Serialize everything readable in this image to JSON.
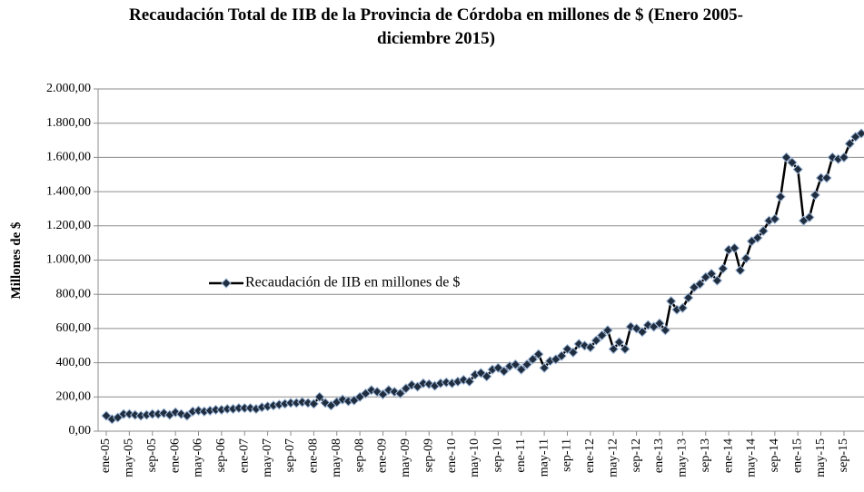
{
  "chart_data": {
    "type": "line",
    "title": [
      "Recaudación Total de IIB de la Provincia de Córdoba en millones de $  (Enero 2005-",
      "diciembre 2015)"
    ],
    "y_label": "Millones de $",
    "categories": [
      "ene-05",
      null,
      null,
      null,
      "may-05",
      null,
      null,
      null,
      "sep-05",
      null,
      null,
      null,
      "ene-06",
      null,
      null,
      null,
      "may-06",
      null,
      null,
      null,
      "sep-06",
      null,
      null,
      null,
      "ene-07",
      null,
      null,
      null,
      "may-07",
      null,
      null,
      null,
      "sep-07",
      null,
      null,
      null,
      "ene-08",
      null,
      null,
      null,
      "may-08",
      null,
      null,
      null,
      "sep-08",
      null,
      null,
      null,
      "ene-09",
      null,
      null,
      null,
      "may-09",
      null,
      null,
      null,
      "sep-09",
      null,
      null,
      null,
      "ene-10",
      null,
      null,
      null,
      "may-10",
      null,
      null,
      null,
      "sep-10",
      null,
      null,
      null,
      "ene-11",
      null,
      null,
      null,
      "may-11",
      null,
      null,
      null,
      "sep-11",
      null,
      null,
      null,
      "ene-12",
      null,
      null,
      null,
      "may-12",
      null,
      null,
      null,
      "sep-12",
      null,
      null,
      null,
      "ene-13",
      null,
      null,
      null,
      "may-13",
      null,
      null,
      null,
      "sep-13",
      null,
      null,
      null,
      "ene-14",
      null,
      null,
      null,
      "may-14",
      null,
      null,
      null,
      "sep-14",
      null,
      null,
      null,
      "ene-15",
      null,
      null,
      null,
      "may-15",
      null,
      null,
      null,
      "sep-15",
      null,
      null,
      null
    ],
    "series": [
      {
        "name": "Recaudación de IIB en millones de $",
        "color": "#000000",
        "marker_color": "#1f2d3f",
        "values": [
          90,
          70,
          80,
          100,
          100,
          95,
          90,
          95,
          100,
          100,
          105,
          95,
          110,
          100,
          90,
          115,
          120,
          115,
          120,
          125,
          125,
          130,
          130,
          135,
          135,
          135,
          130,
          140,
          145,
          150,
          155,
          160,
          165,
          165,
          170,
          165,
          160,
          200,
          165,
          150,
          170,
          185,
          175,
          180,
          200,
          220,
          240,
          230,
          215,
          240,
          230,
          220,
          250,
          270,
          260,
          280,
          275,
          265,
          280,
          285,
          280,
          290,
          300,
          290,
          330,
          340,
          320,
          360,
          370,
          350,
          380,
          390,
          360,
          390,
          420,
          450,
          370,
          410,
          420,
          440,
          480,
          460,
          510,
          500,
          490,
          530,
          560,
          590,
          480,
          520,
          480,
          610,
          600,
          580,
          620,
          610,
          630,
          590,
          760,
          710,
          720,
          780,
          840,
          860,
          900,
          920,
          880,
          950,
          1060,
          1070,
          940,
          1010,
          1110,
          1130,
          1170,
          1230,
          1240,
          1370,
          1600,
          1570,
          1530,
          1230,
          1250,
          1380,
          1480,
          1480,
          1600,
          1590,
          1600,
          1680,
          1720,
          1740
        ]
      }
    ],
    "ylim": [
      0,
      2000
    ],
    "yticks": [
      {
        "value": 0,
        "label": "0,00"
      },
      {
        "value": 200,
        "label": "200,00"
      },
      {
        "value": 400,
        "label": "400,00"
      },
      {
        "value": 600,
        "label": "600,00"
      },
      {
        "value": 800,
        "label": "800,00"
      },
      {
        "value": 1000,
        "label": "1.000,00"
      },
      {
        "value": 1200,
        "label": "1.200,00"
      },
      {
        "value": 1400,
        "label": "1.400,00"
      },
      {
        "value": 1600,
        "label": "1.600,00"
      },
      {
        "value": 1800,
        "label": "1.800,00"
      },
      {
        "value": 2000,
        "label": "2.000,00"
      }
    ],
    "grid": true,
    "legend": "center-left"
  }
}
